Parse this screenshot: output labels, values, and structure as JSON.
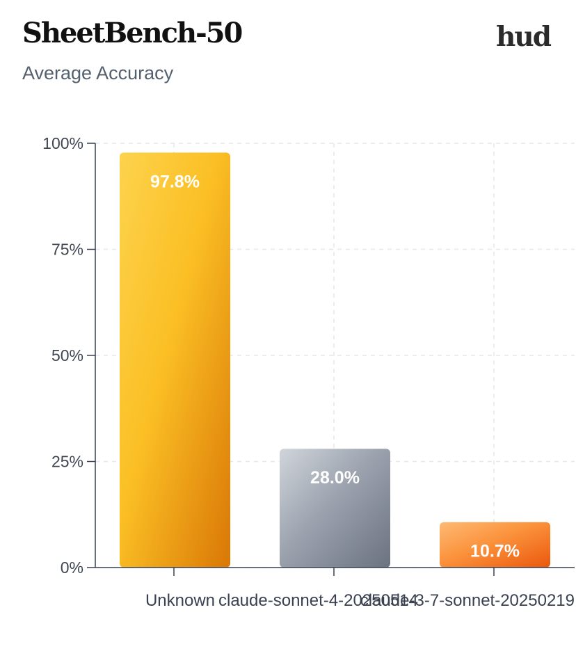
{
  "header": {
    "title": "SheetBench-50",
    "subtitle": "Average Accuracy",
    "logo_text": "hud"
  },
  "chart_data": {
    "type": "bar",
    "categories": [
      "Unknown",
      "claude-sonnet-4-20250514",
      "claude-3-7-sonnet-20250219"
    ],
    "values": [
      97.8,
      28.0,
      10.7
    ],
    "value_labels": [
      "97.8%",
      "28.0%",
      "10.7%"
    ],
    "ylim": [
      0,
      100
    ],
    "yticks": [
      0,
      25,
      50,
      75,
      100
    ],
    "ytick_labels": [
      "0%",
      "25%",
      "50%",
      "75%",
      "100%"
    ],
    "grid": true,
    "bar_colors": [
      [
        "#fcd34d",
        "#fbbf24",
        "#d97706"
      ],
      [
        "#d1d5db",
        "#9ca3af",
        "#6b7280"
      ],
      [
        "#fdba74",
        "#fb923c",
        "#ea580c"
      ]
    ],
    "grid_color": "#e5e7eb",
    "axis_color": "#374151"
  }
}
